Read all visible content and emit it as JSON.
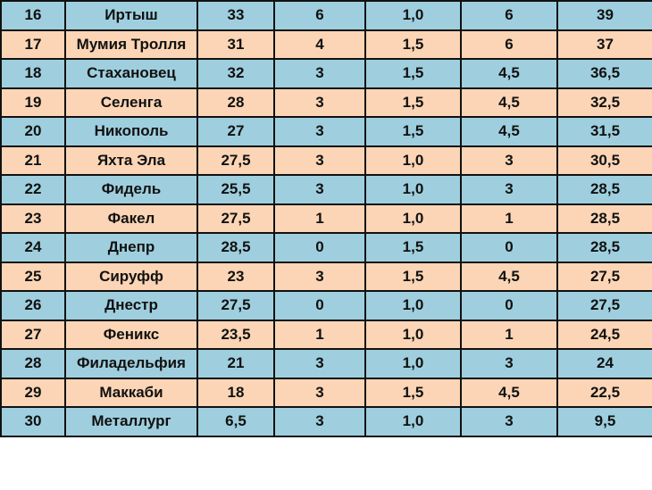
{
  "colors": {
    "row_even": "#9fcfde",
    "row_odd": "#fbd5b5",
    "border": "#111111"
  },
  "rows": [
    {
      "rank": "16",
      "team": "Иртыш",
      "points": "33",
      "wins": "6",
      "coef": "1,0",
      "bonus": "6",
      "total": "39"
    },
    {
      "rank": "17",
      "team": "Мумия Тролля",
      "points": "31",
      "wins": "4",
      "coef": "1,5",
      "bonus": "6",
      "total": "37"
    },
    {
      "rank": "18",
      "team": "Стахановец",
      "points": "32",
      "wins": "3",
      "coef": "1,5",
      "bonus": "4,5",
      "total": "36,5"
    },
    {
      "rank": "19",
      "team": "Селенга",
      "points": "28",
      "wins": "3",
      "coef": "1,5",
      "bonus": "4,5",
      "total": "32,5"
    },
    {
      "rank": "20",
      "team": "Никополь",
      "points": "27",
      "wins": "3",
      "coef": "1,5",
      "bonus": "4,5",
      "total": "31,5"
    },
    {
      "rank": "21",
      "team": "Яхта Эла",
      "points": "27,5",
      "wins": "3",
      "coef": "1,0",
      "bonus": "3",
      "total": "30,5"
    },
    {
      "rank": "22",
      "team": "Фидель",
      "points": "25,5",
      "wins": "3",
      "coef": "1,0",
      "bonus": "3",
      "total": "28,5"
    },
    {
      "rank": "23",
      "team": "Факел",
      "points": "27,5",
      "wins": "1",
      "coef": "1,0",
      "bonus": "1",
      "total": "28,5"
    },
    {
      "rank": "24",
      "team": "Днепр",
      "points": "28,5",
      "wins": "0",
      "coef": "1,5",
      "bonus": "0",
      "total": "28,5"
    },
    {
      "rank": "25",
      "team": "Сируфф",
      "points": "23",
      "wins": "3",
      "coef": "1,5",
      "bonus": "4,5",
      "total": "27,5"
    },
    {
      "rank": "26",
      "team": "Днестр",
      "points": "27,5",
      "wins": "0",
      "coef": "1,0",
      "bonus": "0",
      "total": "27,5"
    },
    {
      "rank": "27",
      "team": "Феникс",
      "points": "23,5",
      "wins": "1",
      "coef": "1,0",
      "bonus": "1",
      "total": "24,5"
    },
    {
      "rank": "28",
      "team": "Филадельфия",
      "points": "21",
      "wins": "3",
      "coef": "1,0",
      "bonus": "3",
      "total": "24"
    },
    {
      "rank": "29",
      "team": "Маккаби",
      "points": "18",
      "wins": "3",
      "coef": "1,5",
      "bonus": "4,5",
      "total": "22,5"
    },
    {
      "rank": "30",
      "team": "Металлург",
      "points": "6,5",
      "wins": "3",
      "coef": "1,0",
      "bonus": "3",
      "total": "9,5"
    }
  ]
}
